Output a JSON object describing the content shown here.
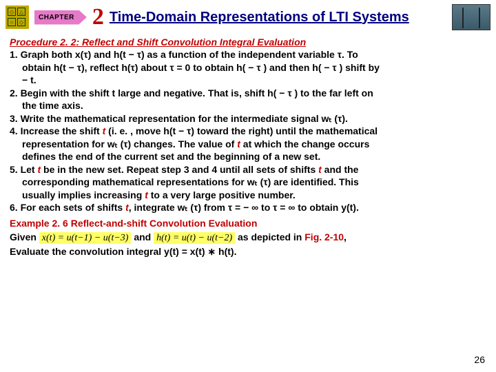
{
  "header": {
    "chapter_label": "CHAPTER",
    "chapter_number": "2",
    "title": "Time-Domain Representations of LTI Systems"
  },
  "procedure": {
    "title": "Procedure 2. 2: Reflect and Shift Convolution Integral Evaluation",
    "steps": {
      "s1a": "1. Graph both x(τ) and h(t − τ) as a function of the independent variable τ. To",
      "s1b": "obtain h(t − τ), reflect h(τ) about τ = 0 to obtain h( − τ ) and then h( − τ ) shift by",
      "s1c": "− t.",
      "s2a": "2. Begin with the shift t large and negative. That is, shift h( − τ ) to the far left on",
      "s2b": "the time axis.",
      "s3": "3. Write the mathematical representation for the intermediate signal wₜ (τ).",
      "s4a_pre": "4. Increase the shift ",
      "s4a_post": " (i. e. , move h(t − τ) toward the right) until the mathematical",
      "s4b_pre": "representation for wₜ (τ) changes. The value of ",
      "s4b_post": " at which the change occurs",
      "s4c": "defines the end of the current set and the beginning of a new set.",
      "s5a_p1": "5. Let ",
      "s5a_p2": " be in the new set. Repeat step 3 and 4 until all sets of shifts ",
      "s5a_p3": " and the",
      "s5b": "corresponding mathematical representations for wₜ (τ) are identified. This",
      "s5c_p1": "usually implies increasing ",
      "s5c_p2": " to a very large positive number.",
      "s6_p1": "6. For each sets of shifts ",
      "s6_p2": ", integrate wₜ (τ) from τ = − ∞ to τ = ∞ to obtain y(t)."
    }
  },
  "example": {
    "title": "Example 2. 6 Reflect-and-shift Convolution Evaluation",
    "given_label": "Given",
    "eq1": "x(t) = u(t−1) − u(t−3)",
    "and_label": " and ",
    "eq2": "h(t) = u(t) − u(t−2)",
    "depicted_label": " as depicted in ",
    "figref": "Fig. 2-10",
    "comma": ",",
    "evaluate": "Evaluate the convolution integral y(t) = x(t) ∗ h(t)."
  },
  "pagenum": "26",
  "t_char": "t"
}
